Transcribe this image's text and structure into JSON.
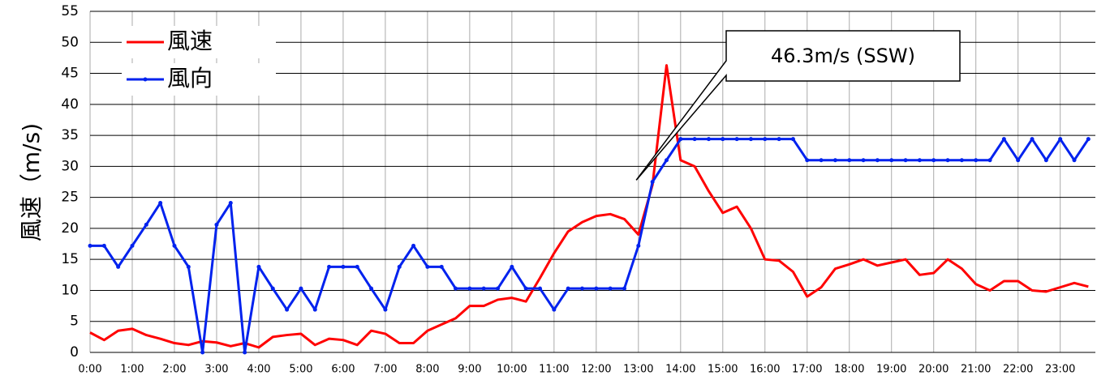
{
  "chart_data": {
    "type": "line",
    "y_label": "風速（m/s)",
    "annotation": "46.3m/s (SSW)",
    "annotation_at": 800,
    "x": [
      0,
      20,
      40,
      60,
      80,
      100,
      120,
      140,
      160,
      180,
      200,
      220,
      240,
      260,
      280,
      300,
      320,
      340,
      360,
      380,
      400,
      420,
      440,
      460,
      480,
      500,
      520,
      540,
      560,
      580,
      600,
      620,
      640,
      660,
      680,
      700,
      720,
      740,
      760,
      780,
      800,
      820,
      840,
      860,
      880,
      900,
      920,
      940,
      960,
      980,
      1000,
      1020,
      1040,
      1060,
      1080,
      1100,
      1120,
      1140,
      1160,
      1180,
      1200,
      1220,
      1240,
      1260,
      1280,
      1300,
      1320,
      1340,
      1360,
      1380,
      1400,
      1420
    ],
    "series": [
      {
        "name": "風速",
        "color": "#ff0000",
        "values": [
          3.2,
          2,
          3.5,
          3.8,
          2.8,
          2.2,
          1.5,
          1.2,
          1.8,
          1.6,
          1.0,
          1.5,
          0.8,
          2.5,
          2.8,
          3.0,
          1.2,
          2.2,
          2.0,
          1.2,
          3.5,
          3.0,
          1.5,
          1.5,
          3.5,
          4.5,
          5.5,
          7.5,
          7.5,
          8.5,
          8.8,
          8.2,
          12,
          16,
          19.5,
          21,
          22,
          22.3,
          21.5,
          19,
          27,
          46.3,
          31,
          30,
          26,
          22.5,
          23.5,
          20,
          15,
          14.8,
          13,
          9,
          10.5,
          13.5,
          14.2,
          15,
          14,
          14.5,
          15,
          12.5,
          12.8,
          15,
          13.5,
          11,
          10,
          11.5,
          11.5,
          10,
          9.8,
          10.5,
          11.2,
          10.6
        ]
      },
      {
        "name": "風向",
        "color": "#0022ee",
        "markers": true,
        "values": [
          17.2,
          17.2,
          13.8,
          17.2,
          20.6,
          24.1,
          17.2,
          13.8,
          0,
          20.6,
          24.1,
          0,
          13.8,
          10.3,
          6.9,
          10.3,
          6.9,
          13.8,
          13.8,
          13.8,
          10.3,
          6.9,
          13.8,
          17.2,
          13.8,
          13.8,
          10.3,
          10.3,
          10.3,
          10.3,
          13.8,
          10.3,
          10.3,
          6.9,
          10.3,
          10.3,
          10.3,
          10.3,
          10.3,
          17.2,
          27.5,
          31,
          34.4,
          34.4,
          34.4,
          34.4,
          34.4,
          34.4,
          34.4,
          34.4,
          34.4,
          31,
          31,
          31,
          31,
          31,
          31,
          31,
          31,
          31,
          31,
          31,
          31,
          31,
          31,
          34.4,
          31,
          34.4,
          31,
          34.4,
          31,
          34.4
        ]
      }
    ],
    "xlim": [
      0,
      1430
    ],
    "xticks": [
      {
        "value": 0,
        "label": "0:00"
      },
      {
        "value": 60,
        "label": "1:00"
      },
      {
        "value": 120,
        "label": "2:00"
      },
      {
        "value": 180,
        "label": "3:00"
      },
      {
        "value": 240,
        "label": "4:00"
      },
      {
        "value": 300,
        "label": "5:00"
      },
      {
        "value": 360,
        "label": "6:00"
      },
      {
        "value": 420,
        "label": "7:00"
      },
      {
        "value": 480,
        "label": "8:00"
      },
      {
        "value": 540,
        "label": "9:00"
      },
      {
        "value": 600,
        "label": "10:00"
      },
      {
        "value": 660,
        "label": "11:00"
      },
      {
        "value": 720,
        "label": "12:00"
      },
      {
        "value": 780,
        "label": "13:00"
      },
      {
        "value": 840,
        "label": "14:00"
      },
      {
        "value": 900,
        "label": "15:00"
      },
      {
        "value": 960,
        "label": "16:00"
      },
      {
        "value": 1020,
        "label": "17:00"
      },
      {
        "value": 1080,
        "label": "18:00"
      },
      {
        "value": 1140,
        "label": "19:00"
      },
      {
        "value": 1200,
        "label": "20:00"
      },
      {
        "value": 1260,
        "label": "21:00"
      },
      {
        "value": 1320,
        "label": "22:00"
      },
      {
        "value": 1380,
        "label": "23:00"
      }
    ],
    "ylim": [
      0,
      55
    ],
    "yticks": [
      0,
      5,
      10,
      15,
      20,
      25,
      30,
      35,
      40,
      45,
      50,
      55
    ],
    "grid": true,
    "legend": "top-left"
  }
}
